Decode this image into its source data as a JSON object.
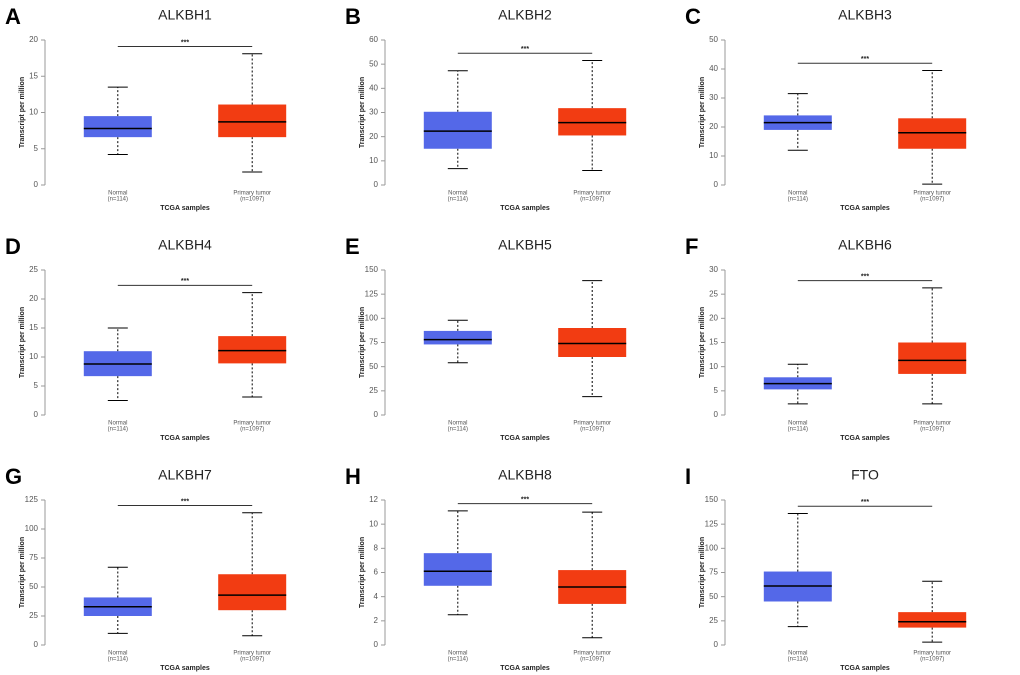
{
  "chart_data": [
    {
      "type": "box",
      "panel": "A",
      "title": "ALKBH1",
      "ylabel": "Transcript per million",
      "xlabel": "TCGA samples",
      "categories": [
        "Normal",
        "Primary tumor"
      ],
      "n_labels": [
        "(n=114)",
        "(n=1097)"
      ],
      "colors": [
        "#5468e8",
        "#f23c12"
      ],
      "boxes": [
        {
          "min": 4.2,
          "q1": 6.6,
          "median": 7.8,
          "q3": 9.5,
          "max": 13.5
        },
        {
          "min": 1.8,
          "q1": 6.6,
          "median": 8.7,
          "q3": 11.1,
          "max": 18.1
        }
      ],
      "significance": "***",
      "ylim": [
        0,
        20
      ],
      "yticks": [
        0,
        5,
        10,
        15,
        20
      ]
    },
    {
      "type": "box",
      "panel": "B",
      "title": "ALKBH2",
      "ylabel": "Transcript per million",
      "xlabel": "TCGA samples",
      "categories": [
        "Normal",
        "Primary tumor"
      ],
      "n_labels": [
        "(n=114)",
        "(n=1097)"
      ],
      "colors": [
        "#5468e8",
        "#f23c12"
      ],
      "boxes": [
        {
          "min": 6.8,
          "q1": 15,
          "median": 22.3,
          "q3": 30.3,
          "max": 47.3
        },
        {
          "min": 6,
          "q1": 20.5,
          "median": 25.8,
          "q3": 31.8,
          "max": 51.5
        }
      ],
      "significance": "***",
      "ylim": [
        0,
        60
      ],
      "yticks": [
        0,
        10,
        20,
        30,
        40,
        50,
        60
      ]
    },
    {
      "type": "box",
      "panel": "C",
      "title": "ALKBH3",
      "ylabel": "Transcript per million",
      "xlabel": "TCGA samples",
      "categories": [
        "Normal",
        "Primary tumor"
      ],
      "n_labels": [
        "(n=114)",
        "(n=1097)"
      ],
      "colors": [
        "#5468e8",
        "#f23c12"
      ],
      "boxes": [
        {
          "min": 12,
          "q1": 19,
          "median": 21.5,
          "q3": 24,
          "max": 31.5
        },
        {
          "min": 0.3,
          "q1": 12.5,
          "median": 18,
          "q3": 23,
          "max": 39.5
        }
      ],
      "significance": "***",
      "ylim": [
        0,
        50
      ],
      "yticks": [
        0,
        10,
        20,
        30,
        40,
        50
      ]
    },
    {
      "type": "box",
      "panel": "D",
      "title": "ALKBH4",
      "ylabel": "Transcript per million",
      "xlabel": "TCGA samples",
      "categories": [
        "Normal",
        "Primary tumor"
      ],
      "n_labels": [
        "(n=114)",
        "(n=1097)"
      ],
      "colors": [
        "#5468e8",
        "#f23c12"
      ],
      "boxes": [
        {
          "min": 2.5,
          "q1": 6.7,
          "median": 8.8,
          "q3": 11,
          "max": 15
        },
        {
          "min": 3.1,
          "q1": 8.9,
          "median": 11.1,
          "q3": 13.6,
          "max": 21.1
        }
      ],
      "significance": "***",
      "ylim": [
        0,
        25
      ],
      "yticks": [
        0,
        5,
        10,
        15,
        20,
        25
      ]
    },
    {
      "type": "box",
      "panel": "E",
      "title": "ALKBH5",
      "ylabel": "Transcript per million",
      "xlabel": "TCGA samples",
      "categories": [
        "Normal",
        "Primary tumor"
      ],
      "n_labels": [
        "(n=114)",
        "(n=1097)"
      ],
      "colors": [
        "#5468e8",
        "#f23c12"
      ],
      "boxes": [
        {
          "min": 54,
          "q1": 73,
          "median": 78,
          "q3": 87,
          "max": 98
        },
        {
          "min": 19,
          "q1": 60,
          "median": 74,
          "q3": 90,
          "max": 139
        }
      ],
      "ylim": [
        0,
        150
      ],
      "yticks": [
        0,
        25,
        50,
        75,
        100,
        125,
        150
      ]
    },
    {
      "type": "box",
      "panel": "F",
      "title": "ALKBH6",
      "ylabel": "Transcript per million",
      "xlabel": "TCGA samples",
      "categories": [
        "Normal",
        "Primary tumor"
      ],
      "n_labels": [
        "(n=114)",
        "(n=1097)"
      ],
      "colors": [
        "#5468e8",
        "#f23c12"
      ],
      "boxes": [
        {
          "min": 2.3,
          "q1": 5.3,
          "median": 6.5,
          "q3": 7.8,
          "max": 10.5
        },
        {
          "min": 2.3,
          "q1": 8.5,
          "median": 11.3,
          "q3": 15,
          "max": 26.3
        }
      ],
      "significance": "***",
      "ylim": [
        0,
        30
      ],
      "yticks": [
        0,
        5,
        10,
        15,
        20,
        25,
        30
      ]
    },
    {
      "type": "box",
      "panel": "G",
      "title": "ALKBH7",
      "ylabel": "Transcript per million",
      "xlabel": "TCGA samples",
      "categories": [
        "Normal",
        "Primary tumor"
      ],
      "n_labels": [
        "(n=114)",
        "(n=1097)"
      ],
      "colors": [
        "#5468e8",
        "#f23c12"
      ],
      "boxes": [
        {
          "min": 10,
          "q1": 25,
          "median": 33,
          "q3": 41,
          "max": 67
        },
        {
          "min": 8,
          "q1": 30,
          "median": 43,
          "q3": 61,
          "max": 114
        }
      ],
      "significance": "***",
      "ylim": [
        0,
        125
      ],
      "yticks": [
        0,
        25,
        50,
        75,
        100,
        125
      ]
    },
    {
      "type": "box",
      "panel": "H",
      "title": "ALKBH8",
      "ylabel": "Transcript per million",
      "xlabel": "TCGA samples",
      "categories": [
        "Normal",
        "Primary tumor"
      ],
      "n_labels": [
        "(n=114)",
        "(n=1097)"
      ],
      "colors": [
        "#5468e8",
        "#f23c12"
      ],
      "boxes": [
        {
          "min": 2.5,
          "q1": 4.9,
          "median": 6.1,
          "q3": 7.6,
          "max": 11.1
        },
        {
          "min": 0.6,
          "q1": 3.4,
          "median": 4.8,
          "q3": 6.2,
          "max": 11
        }
      ],
      "significance": "***",
      "ylim": [
        0,
        12
      ],
      "yticks": [
        0,
        2,
        4,
        6,
        8,
        10,
        12
      ]
    },
    {
      "type": "box",
      "panel": "I",
      "title": "FTO",
      "ylabel": "Transcript per million",
      "xlabel": "TCGA samples",
      "categories": [
        "Normal",
        "Primary tumor"
      ],
      "n_labels": [
        "(n=114)",
        "(n=1097)"
      ],
      "colors": [
        "#5468e8",
        "#f23c12"
      ],
      "boxes": [
        {
          "min": 19,
          "q1": 45,
          "median": 61,
          "q3": 76,
          "max": 136
        },
        {
          "min": 3,
          "q1": 18,
          "median": 24,
          "q3": 34,
          "max": 66
        }
      ],
      "significance": "***",
      "ylim": [
        0,
        150
      ],
      "yticks": [
        0,
        25,
        50,
        75,
        100,
        125,
        150
      ]
    }
  ]
}
